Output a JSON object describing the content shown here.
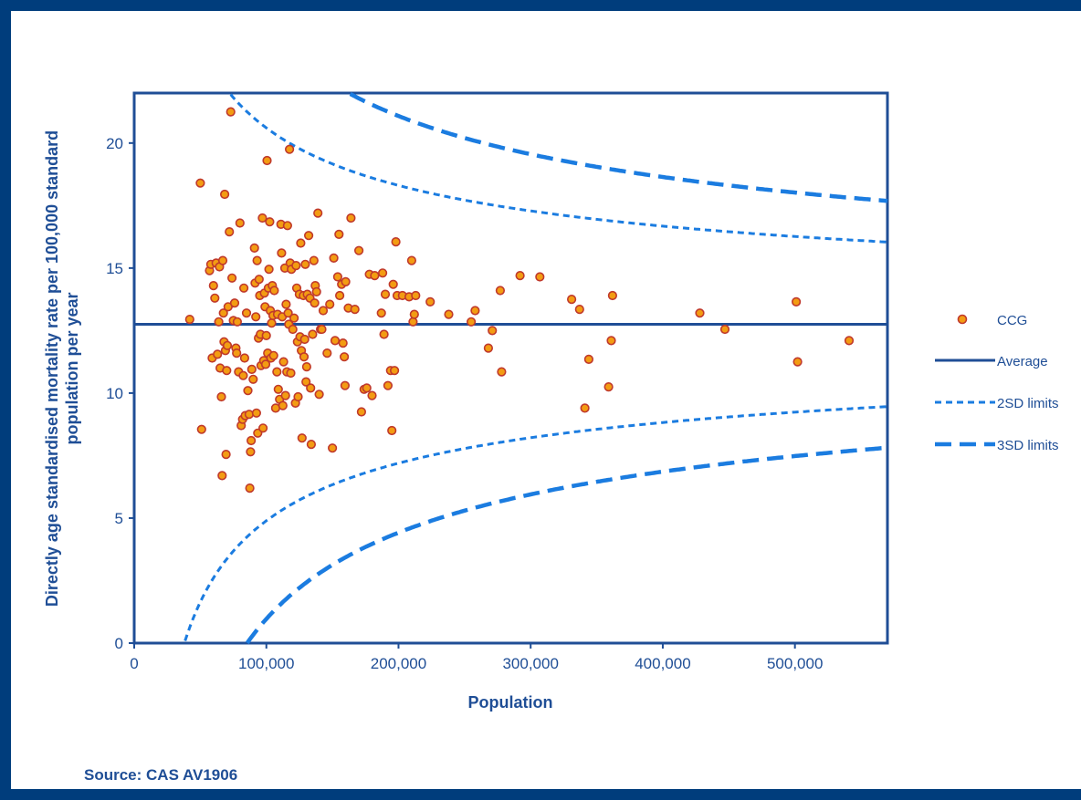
{
  "source_label": "Source: CAS AV1906",
  "chart_data": {
    "type": "scatter",
    "title": "",
    "xlabel": "Population",
    "ylabel": "Directly age standardised mortality rate per 100,000 standard population per year",
    "xlim": [
      0,
      570000
    ],
    "ylim": [
      0,
      22
    ],
    "xticks": [
      0,
      100000,
      200000,
      300000,
      400000,
      500000
    ],
    "xtick_labels": [
      "0",
      "100,000",
      "200,000",
      "300,000",
      "400,000",
      "500,000"
    ],
    "yticks": [
      0,
      5,
      10,
      15,
      20
    ],
    "ytick_labels": [
      "0",
      "5",
      "10",
      "15",
      "20"
    ],
    "grid": false,
    "legend_position": "right",
    "legend": [
      "CCG",
      "Average",
      "2SD limits",
      "3SD limits"
    ],
    "colors": {
      "marker_fill": "#F39C12",
      "marker_edge": "#C0392B",
      "average": "#1F4E96",
      "limits": "#1B7CE0",
      "axis": "#1F4E96",
      "frame": "#003D7C"
    },
    "average": 12.75,
    "limit_constants": {
      "two_sd": 2.2,
      "three_sd": 3.3
    },
    "series": [
      {
        "name": "CCG",
        "points": [
          [
            42000,
            12.95
          ],
          [
            50000,
            18.4
          ],
          [
            51000,
            8.55
          ],
          [
            57000,
            14.9
          ],
          [
            58000,
            15.15
          ],
          [
            59000,
            11.4
          ],
          [
            60000,
            14.3
          ],
          [
            61000,
            13.8
          ],
          [
            62000,
            15.2
          ],
          [
            63000,
            11.55
          ],
          [
            64000,
            12.85
          ],
          [
            64500,
            15.05
          ],
          [
            65000,
            11.0
          ],
          [
            66000,
            9.85
          ],
          [
            66500,
            6.7
          ],
          [
            67000,
            15.3
          ],
          [
            67500,
            13.2
          ],
          [
            68000,
            12.05
          ],
          [
            68500,
            17.95
          ],
          [
            69000,
            11.7
          ],
          [
            69500,
            7.55
          ],
          [
            70000,
            10.9
          ],
          [
            70500,
            11.9
          ],
          [
            71000,
            13.45
          ],
          [
            72000,
            16.45
          ],
          [
            73000,
            21.25
          ],
          [
            74000,
            14.6
          ],
          [
            75000,
            12.9
          ],
          [
            76000,
            13.6
          ],
          [
            77000,
            11.8
          ],
          [
            77500,
            11.6
          ],
          [
            78000,
            12.85
          ],
          [
            79000,
            10.85
          ],
          [
            80000,
            16.8
          ],
          [
            81000,
            8.7
          ],
          [
            82000,
            8.95
          ],
          [
            82500,
            10.7
          ],
          [
            83000,
            14.2
          ],
          [
            83500,
            11.4
          ],
          [
            84000,
            9.1
          ],
          [
            85000,
            13.2
          ],
          [
            86000,
            10.1
          ],
          [
            87000,
            9.15
          ],
          [
            87500,
            6.2
          ],
          [
            88000,
            7.65
          ],
          [
            88500,
            8.1
          ],
          [
            89000,
            10.95
          ],
          [
            90000,
            10.55
          ],
          [
            91000,
            15.8
          ],
          [
            91500,
            14.4
          ],
          [
            92000,
            13.05
          ],
          [
            92500,
            9.2
          ],
          [
            93000,
            15.3
          ],
          [
            93500,
            8.4
          ],
          [
            94000,
            12.2
          ],
          [
            94500,
            14.55
          ],
          [
            95000,
            13.9
          ],
          [
            95500,
            12.35
          ],
          [
            96000,
            11.1
          ],
          [
            97000,
            17.0
          ],
          [
            97500,
            8.6
          ],
          [
            98000,
            11.3
          ],
          [
            98500,
            14.0
          ],
          [
            99000,
            13.45
          ],
          [
            99500,
            11.15
          ],
          [
            100000,
            12.3
          ],
          [
            100500,
            19.3
          ],
          [
            101000,
            11.6
          ],
          [
            101500,
            14.2
          ],
          [
            102000,
            14.95
          ],
          [
            102500,
            16.85
          ],
          [
            103000,
            13.3
          ],
          [
            103500,
            11.4
          ],
          [
            104000,
            12.8
          ],
          [
            104500,
            14.3
          ],
          [
            105000,
            13.1
          ],
          [
            105500,
            11.5
          ],
          [
            106000,
            14.1
          ],
          [
            107000,
            9.4
          ],
          [
            108000,
            10.85
          ],
          [
            108500,
            13.15
          ],
          [
            109000,
            10.15
          ],
          [
            110000,
            9.75
          ],
          [
            111000,
            16.75
          ],
          [
            111500,
            15.6
          ],
          [
            112000,
            13.05
          ],
          [
            112500,
            9.5
          ],
          [
            113000,
            11.25
          ],
          [
            114000,
            15.0
          ],
          [
            114500,
            9.9
          ],
          [
            115000,
            13.55
          ],
          [
            115500,
            10.85
          ],
          [
            116000,
            16.7
          ],
          [
            116500,
            13.2
          ],
          [
            117000,
            12.75
          ],
          [
            117500,
            19.75
          ],
          [
            118000,
            15.2
          ],
          [
            118500,
            10.8
          ],
          [
            119000,
            14.95
          ],
          [
            120000,
            12.55
          ],
          [
            121000,
            13.0
          ],
          [
            122000,
            9.6
          ],
          [
            122500,
            15.1
          ],
          [
            123000,
            14.2
          ],
          [
            123500,
            12.05
          ],
          [
            124000,
            9.85
          ],
          [
            125000,
            13.95
          ],
          [
            125500,
            12.25
          ],
          [
            126000,
            16.0
          ],
          [
            126500,
            11.7
          ],
          [
            127000,
            8.2
          ],
          [
            128000,
            13.9
          ],
          [
            128500,
            11.45
          ],
          [
            129000,
            12.15
          ],
          [
            129500,
            15.15
          ],
          [
            130000,
            10.45
          ],
          [
            130500,
            11.05
          ],
          [
            131000,
            13.95
          ],
          [
            132000,
            16.3
          ],
          [
            133000,
            13.8
          ],
          [
            133500,
            10.2
          ],
          [
            134000,
            7.95
          ],
          [
            135000,
            12.35
          ],
          [
            136000,
            15.3
          ],
          [
            136500,
            13.6
          ],
          [
            137000,
            14.3
          ],
          [
            138000,
            14.05
          ],
          [
            139000,
            17.2
          ],
          [
            140000,
            9.95
          ],
          [
            141000,
            12.55
          ],
          [
            142000,
            12.55
          ],
          [
            143000,
            13.3
          ],
          [
            146000,
            11.6
          ],
          [
            148000,
            13.55
          ],
          [
            150000,
            7.8
          ],
          [
            151000,
            15.4
          ],
          [
            152000,
            12.1
          ],
          [
            154000,
            14.65
          ],
          [
            155000,
            16.35
          ],
          [
            155500,
            13.9
          ],
          [
            157000,
            14.35
          ],
          [
            158000,
            12.0
          ],
          [
            159000,
            11.45
          ],
          [
            159500,
            10.3
          ],
          [
            160000,
            14.45
          ],
          [
            162000,
            13.4
          ],
          [
            164000,
            17.0
          ],
          [
            167000,
            13.35
          ],
          [
            170000,
            15.7
          ],
          [
            172000,
            9.25
          ],
          [
            174000,
            10.15
          ],
          [
            176000,
            10.2
          ],
          [
            178000,
            14.75
          ],
          [
            180000,
            9.9
          ],
          [
            182000,
            14.7
          ],
          [
            187000,
            13.2
          ],
          [
            188000,
            14.8
          ],
          [
            189000,
            12.35
          ],
          [
            190000,
            13.95
          ],
          [
            192000,
            10.3
          ],
          [
            194000,
            10.9
          ],
          [
            195000,
            8.5
          ],
          [
            196000,
            14.35
          ],
          [
            197000,
            10.9
          ],
          [
            198000,
            16.05
          ],
          [
            199000,
            13.9
          ],
          [
            203000,
            13.9
          ],
          [
            208000,
            13.85
          ],
          [
            211000,
            12.85
          ],
          [
            212000,
            13.15
          ],
          [
            213000,
            13.9
          ],
          [
            210000,
            15.3
          ],
          [
            224000,
            13.65
          ],
          [
            238000,
            13.15
          ],
          [
            255000,
            12.85
          ],
          [
            258000,
            13.3
          ],
          [
            268000,
            11.8
          ],
          [
            271000,
            12.5
          ],
          [
            277000,
            14.1
          ],
          [
            278000,
            10.85
          ],
          [
            292000,
            14.7
          ],
          [
            307000,
            14.65
          ],
          [
            331000,
            13.75
          ],
          [
            337000,
            13.35
          ],
          [
            341000,
            9.4
          ],
          [
            344000,
            11.35
          ],
          [
            359000,
            10.25
          ],
          [
            361000,
            12.1
          ],
          [
            362000,
            13.9
          ],
          [
            428000,
            13.2
          ],
          [
            447000,
            12.55
          ],
          [
            501000,
            13.65
          ],
          [
            502000,
            11.25
          ],
          [
            541000,
            12.1
          ]
        ]
      },
      {
        "name": "Average"
      },
      {
        "name": "2SD limits"
      },
      {
        "name": "3SD limits"
      }
    ]
  }
}
